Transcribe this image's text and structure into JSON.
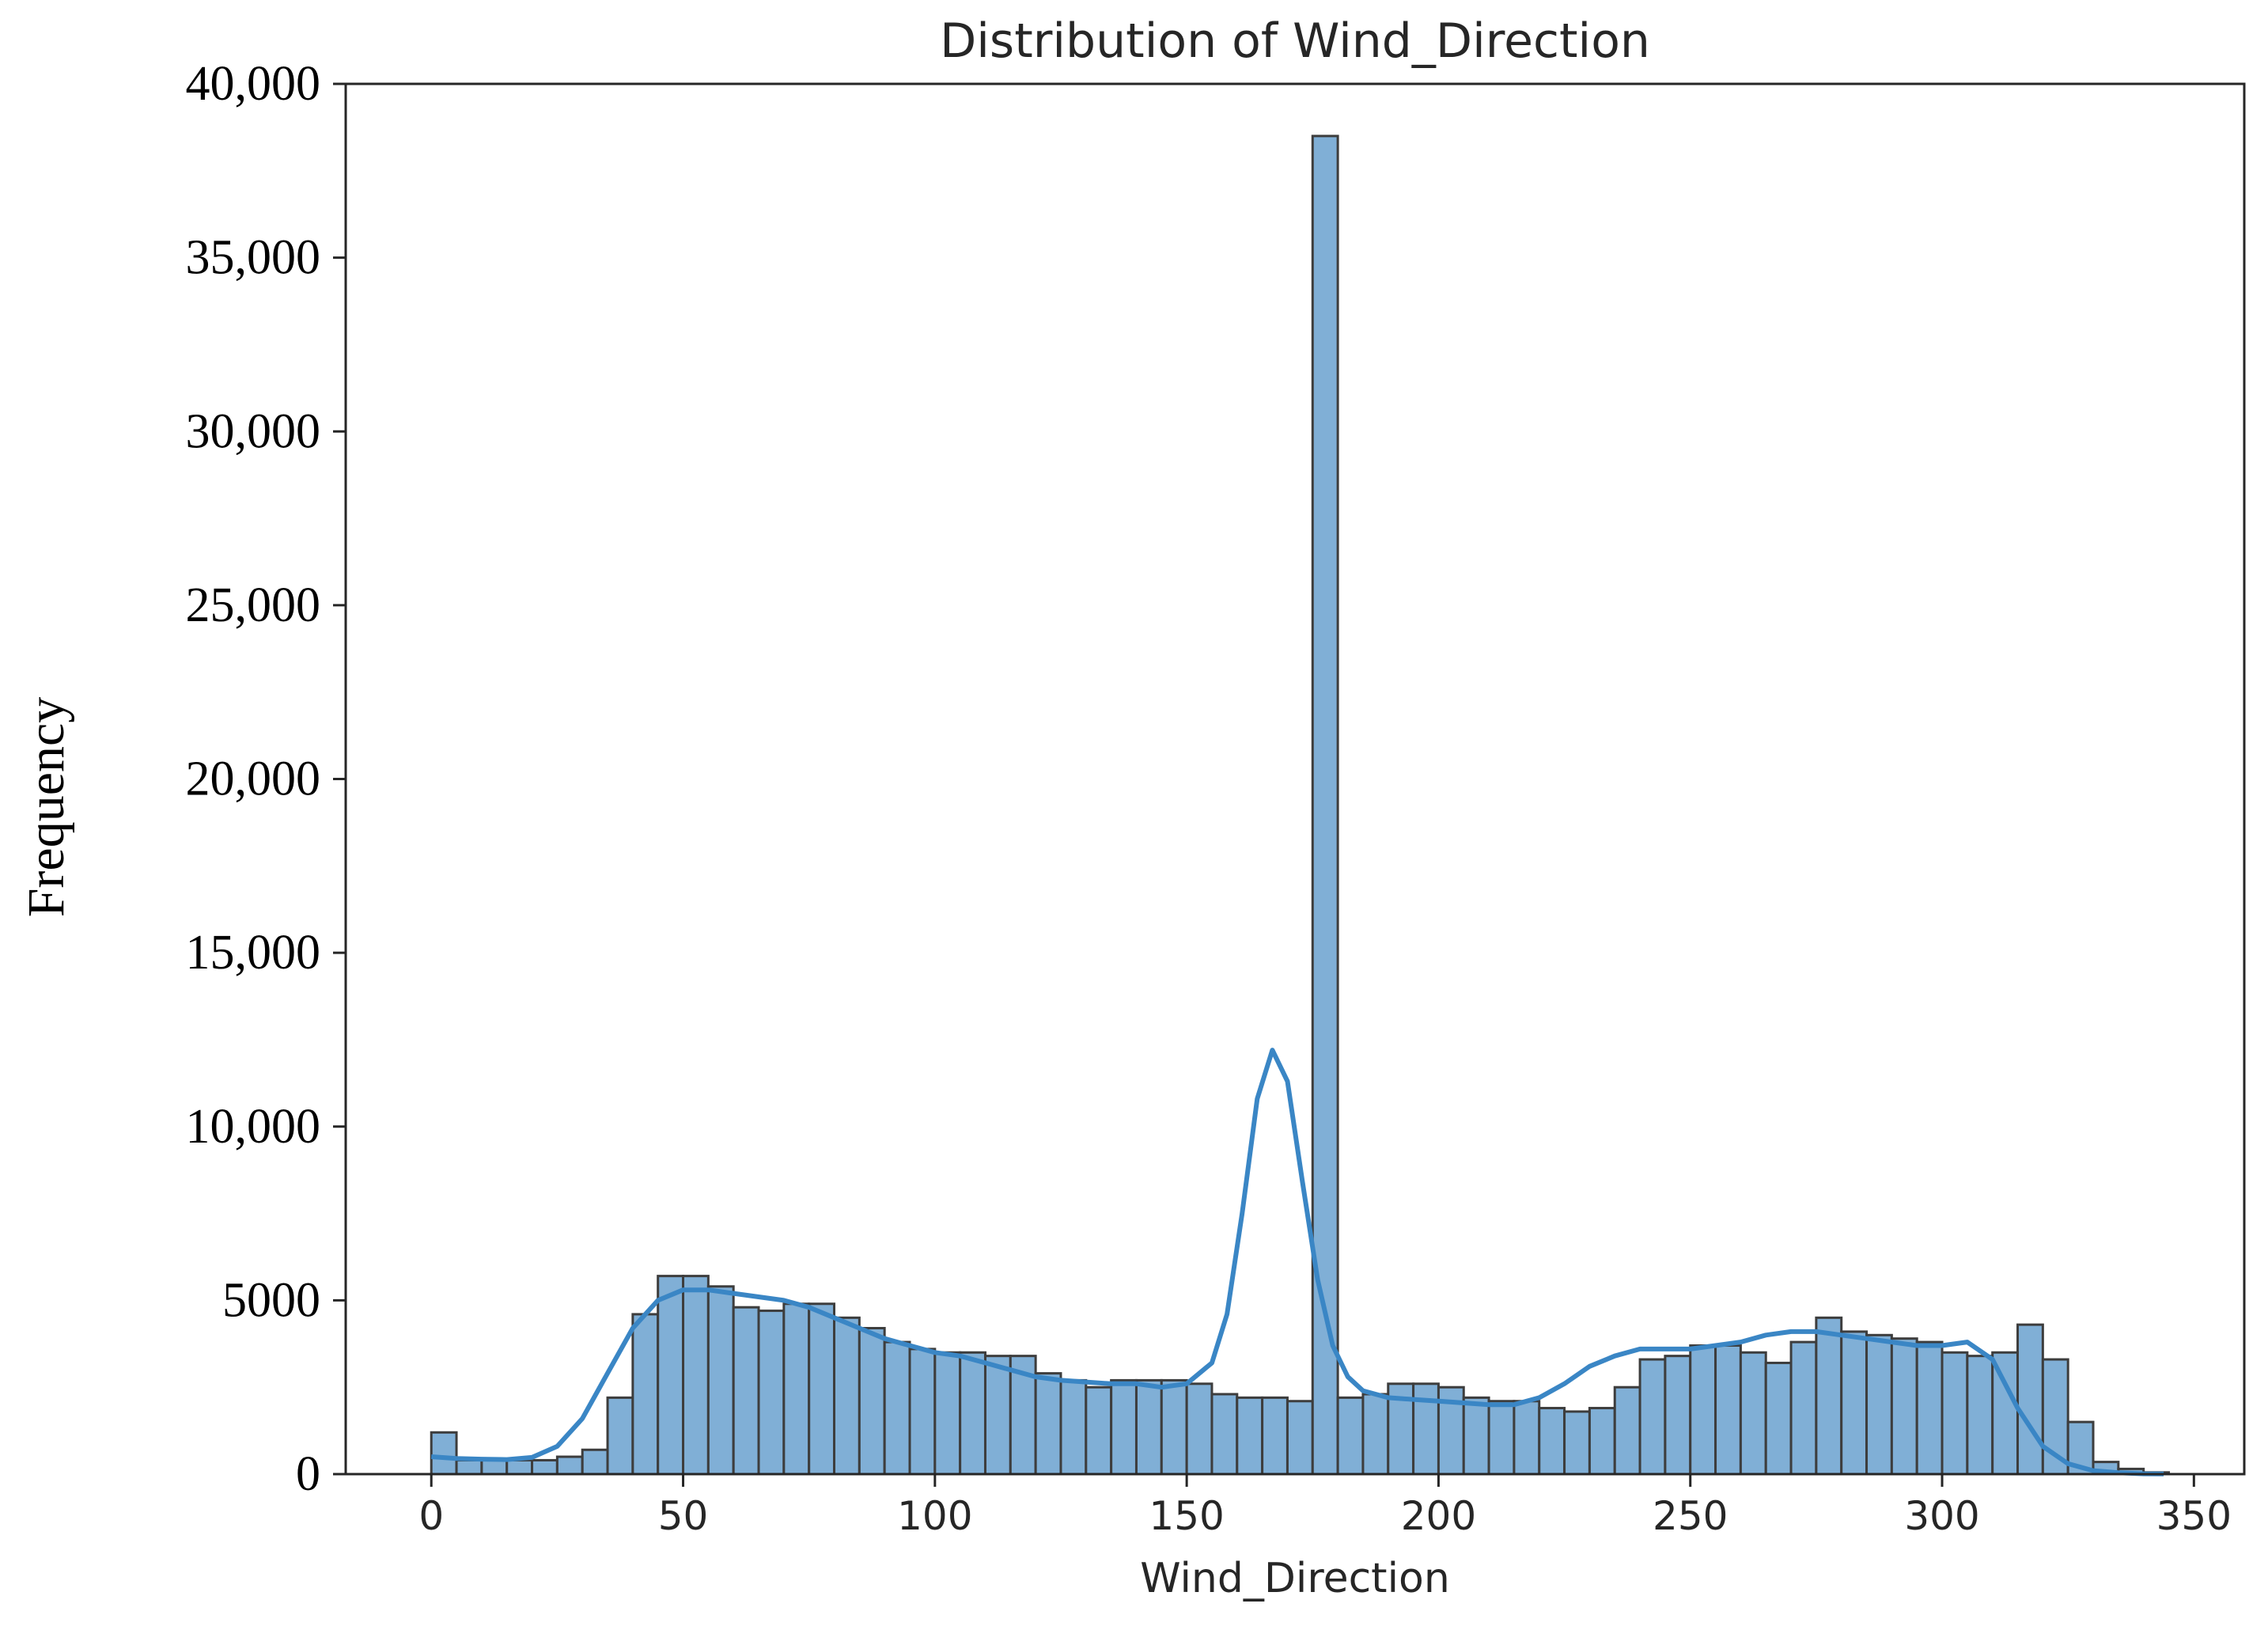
{
  "chart_data": {
    "type": "bar",
    "title": "Distribution of Wind_Direction",
    "xlabel": "Wind_Direction",
    "ylabel": "Frequency",
    "xlim": [
      -17,
      360
    ],
    "ylim": [
      0,
      40000
    ],
    "x_ticks": [
      0,
      50,
      100,
      150,
      200,
      250,
      300,
      350
    ],
    "x_tick_labels": [
      "0",
      "50",
      "100",
      "150",
      "200",
      "250",
      "300",
      "350"
    ],
    "y_ticks": [
      0,
      5000,
      10000,
      15000,
      20000,
      25000,
      30000,
      35000,
      40000
    ],
    "y_tick_labels": [
      "0",
      "5000",
      "10,000",
      "15,000",
      "20,000",
      "25,000",
      "30,000",
      "35,000",
      "40,000"
    ],
    "grid": false,
    "bin_edges": [
      0,
      5,
      10,
      15,
      20,
      25,
      30,
      35,
      40,
      45,
      50,
      55,
      60,
      65,
      70,
      75,
      80,
      85,
      90,
      95,
      100,
      105,
      110,
      115,
      120,
      125,
      130,
      135,
      140,
      145,
      150,
      155,
      160,
      165,
      170,
      175,
      180,
      185,
      190,
      195,
      200,
      205,
      210,
      215,
      220,
      225,
      230,
      235,
      240,
      245,
      250,
      255,
      260,
      265,
      270,
      275,
      280,
      285,
      290,
      295,
      300,
      305,
      310,
      315,
      320,
      325,
      330,
      335,
      340,
      345
    ],
    "values": [
      1200,
      400,
      400,
      400,
      400,
      500,
      700,
      2200,
      4600,
      5700,
      5700,
      5400,
      4800,
      4700,
      4900,
      4900,
      4500,
      4200,
      3800,
      3600,
      3500,
      3500,
      3400,
      3400,
      2900,
      2700,
      2500,
      2700,
      2700,
      2700,
      2600,
      2300,
      2200,
      2200,
      2100,
      38500,
      2200,
      2300,
      2600,
      2600,
      2500,
      2200,
      2100,
      2100,
      1900,
      1800,
      1900,
      2500,
      3300,
      3400,
      3700,
      3700,
      3500,
      3200,
      3800,
      4500,
      4100,
      4000,
      3900,
      3800,
      3500,
      3400,
      3500,
      4300,
      3300,
      1500,
      350,
      150,
      50
    ],
    "kde": {
      "x": [
        0,
        5,
        10,
        15,
        20,
        25,
        30,
        35,
        40,
        45,
        50,
        55,
        60,
        65,
        70,
        75,
        80,
        85,
        90,
        95,
        100,
        105,
        110,
        115,
        120,
        125,
        130,
        135,
        140,
        145,
        150,
        155,
        158,
        161,
        164,
        167,
        170,
        173,
        176,
        179,
        182,
        185,
        190,
        195,
        200,
        205,
        210,
        215,
        220,
        225,
        230,
        235,
        240,
        245,
        250,
        255,
        260,
        265,
        270,
        275,
        280,
        285,
        290,
        295,
        300,
        305,
        310,
        315,
        320,
        325,
        330,
        335,
        340,
        344
      ],
      "y": [
        500,
        450,
        430,
        420,
        480,
        800,
        1600,
        2900,
        4200,
        5000,
        5300,
        5300,
        5200,
        5100,
        5000,
        4800,
        4500,
        4200,
        3900,
        3700,
        3500,
        3400,
        3200,
        3000,
        2800,
        2700,
        2650,
        2600,
        2600,
        2500,
        2600,
        3200,
        4600,
        7500,
        10800,
        12200,
        11300,
        8400,
        5600,
        3700,
        2800,
        2400,
        2200,
        2150,
        2100,
        2050,
        2000,
        2000,
        2200,
        2600,
        3100,
        3400,
        3600,
        3600,
        3600,
        3700,
        3800,
        4000,
        4100,
        4100,
        4000,
        3900,
        3800,
        3700,
        3700,
        3800,
        3300,
        1900,
        800,
        300,
        100,
        40,
        10,
        5
      ]
    },
    "colors": {
      "bar_fill": "#80afd6",
      "bar_edge": "#3d3d3d",
      "kde_line": "#3a86c5",
      "axis": "#262626"
    }
  }
}
